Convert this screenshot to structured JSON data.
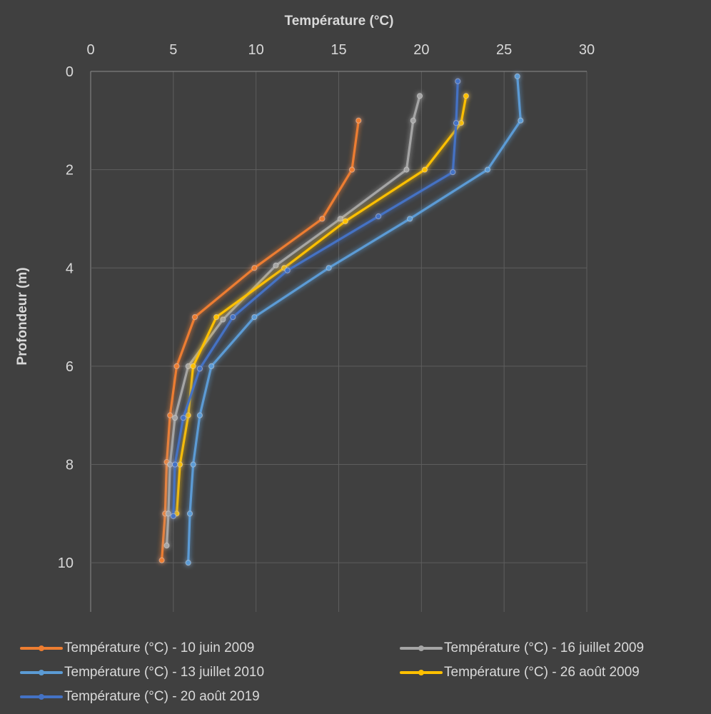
{
  "chart_data": {
    "type": "line",
    "title": "",
    "xlabel": "Température (°C)",
    "ylabel": "Profondeur (m)",
    "xlim": [
      0,
      30
    ],
    "ylim": [
      0,
      11
    ],
    "x_axis_position": "top",
    "y_axis_reversed": true,
    "x_ticks": [
      "0",
      "5",
      "10",
      "15",
      "20",
      "25",
      "30"
    ],
    "y_ticks": [
      "0",
      "2",
      "4",
      "6",
      "8",
      "10"
    ],
    "grid": true,
    "legend_position": "bottom",
    "background_color": "#404040",
    "series": [
      {
        "name": "Température (°C) - 10 juin 2009",
        "color": "#ed7d31",
        "points": [
          [
            16.2,
            1
          ],
          [
            15.8,
            2
          ],
          [
            14.0,
            3
          ],
          [
            9.9,
            4
          ],
          [
            6.3,
            5
          ],
          [
            5.2,
            6
          ],
          [
            4.8,
            7
          ],
          [
            4.6,
            7.95
          ],
          [
            4.5,
            9
          ],
          [
            4.3,
            9.95
          ]
        ]
      },
      {
        "name": "Température (°C) - 16 juillet 2009",
        "color": "#a5a5a5",
        "points": [
          [
            19.9,
            0.5
          ],
          [
            19.5,
            1
          ],
          [
            19.1,
            2
          ],
          [
            15.1,
            3
          ],
          [
            11.2,
            3.95
          ],
          [
            8.0,
            5.05
          ],
          [
            5.9,
            6
          ],
          [
            5.1,
            7.05
          ],
          [
            4.8,
            8
          ],
          [
            4.7,
            9
          ],
          [
            4.6,
            9.65
          ]
        ]
      },
      {
        "name": "Température (°C) - 13 juillet 2010",
        "color": "#5b9bd5",
        "points": [
          [
            25.8,
            0.1
          ],
          [
            26.0,
            1
          ],
          [
            24.0,
            2
          ],
          [
            19.3,
            3
          ],
          [
            14.4,
            4
          ],
          [
            9.9,
            5
          ],
          [
            7.3,
            6
          ],
          [
            6.6,
            7
          ],
          [
            6.2,
            8
          ],
          [
            6.0,
            9
          ],
          [
            5.9,
            10
          ]
        ]
      },
      {
        "name": "Température (°C) - 26 août 2009",
        "color": "#ffc000",
        "points": [
          [
            22.7,
            0.5
          ],
          [
            22.4,
            1.05
          ],
          [
            20.2,
            2
          ],
          [
            15.4,
            3.05
          ],
          [
            11.7,
            4
          ],
          [
            7.6,
            5
          ],
          [
            6.2,
            6
          ],
          [
            5.9,
            7
          ],
          [
            5.4,
            8
          ],
          [
            5.2,
            9
          ]
        ]
      },
      {
        "name": "Température (°C) - 20 août 2019",
        "color": "#4472c4",
        "points": [
          [
            22.2,
            0.2
          ],
          [
            22.1,
            1.05
          ],
          [
            21.9,
            2.05
          ],
          [
            17.4,
            2.95
          ],
          [
            11.9,
            4.05
          ],
          [
            8.6,
            5
          ],
          [
            6.6,
            6.05
          ],
          [
            5.6,
            7.05
          ],
          [
            5.1,
            8
          ],
          [
            5.0,
            9.05
          ]
        ]
      }
    ]
  }
}
